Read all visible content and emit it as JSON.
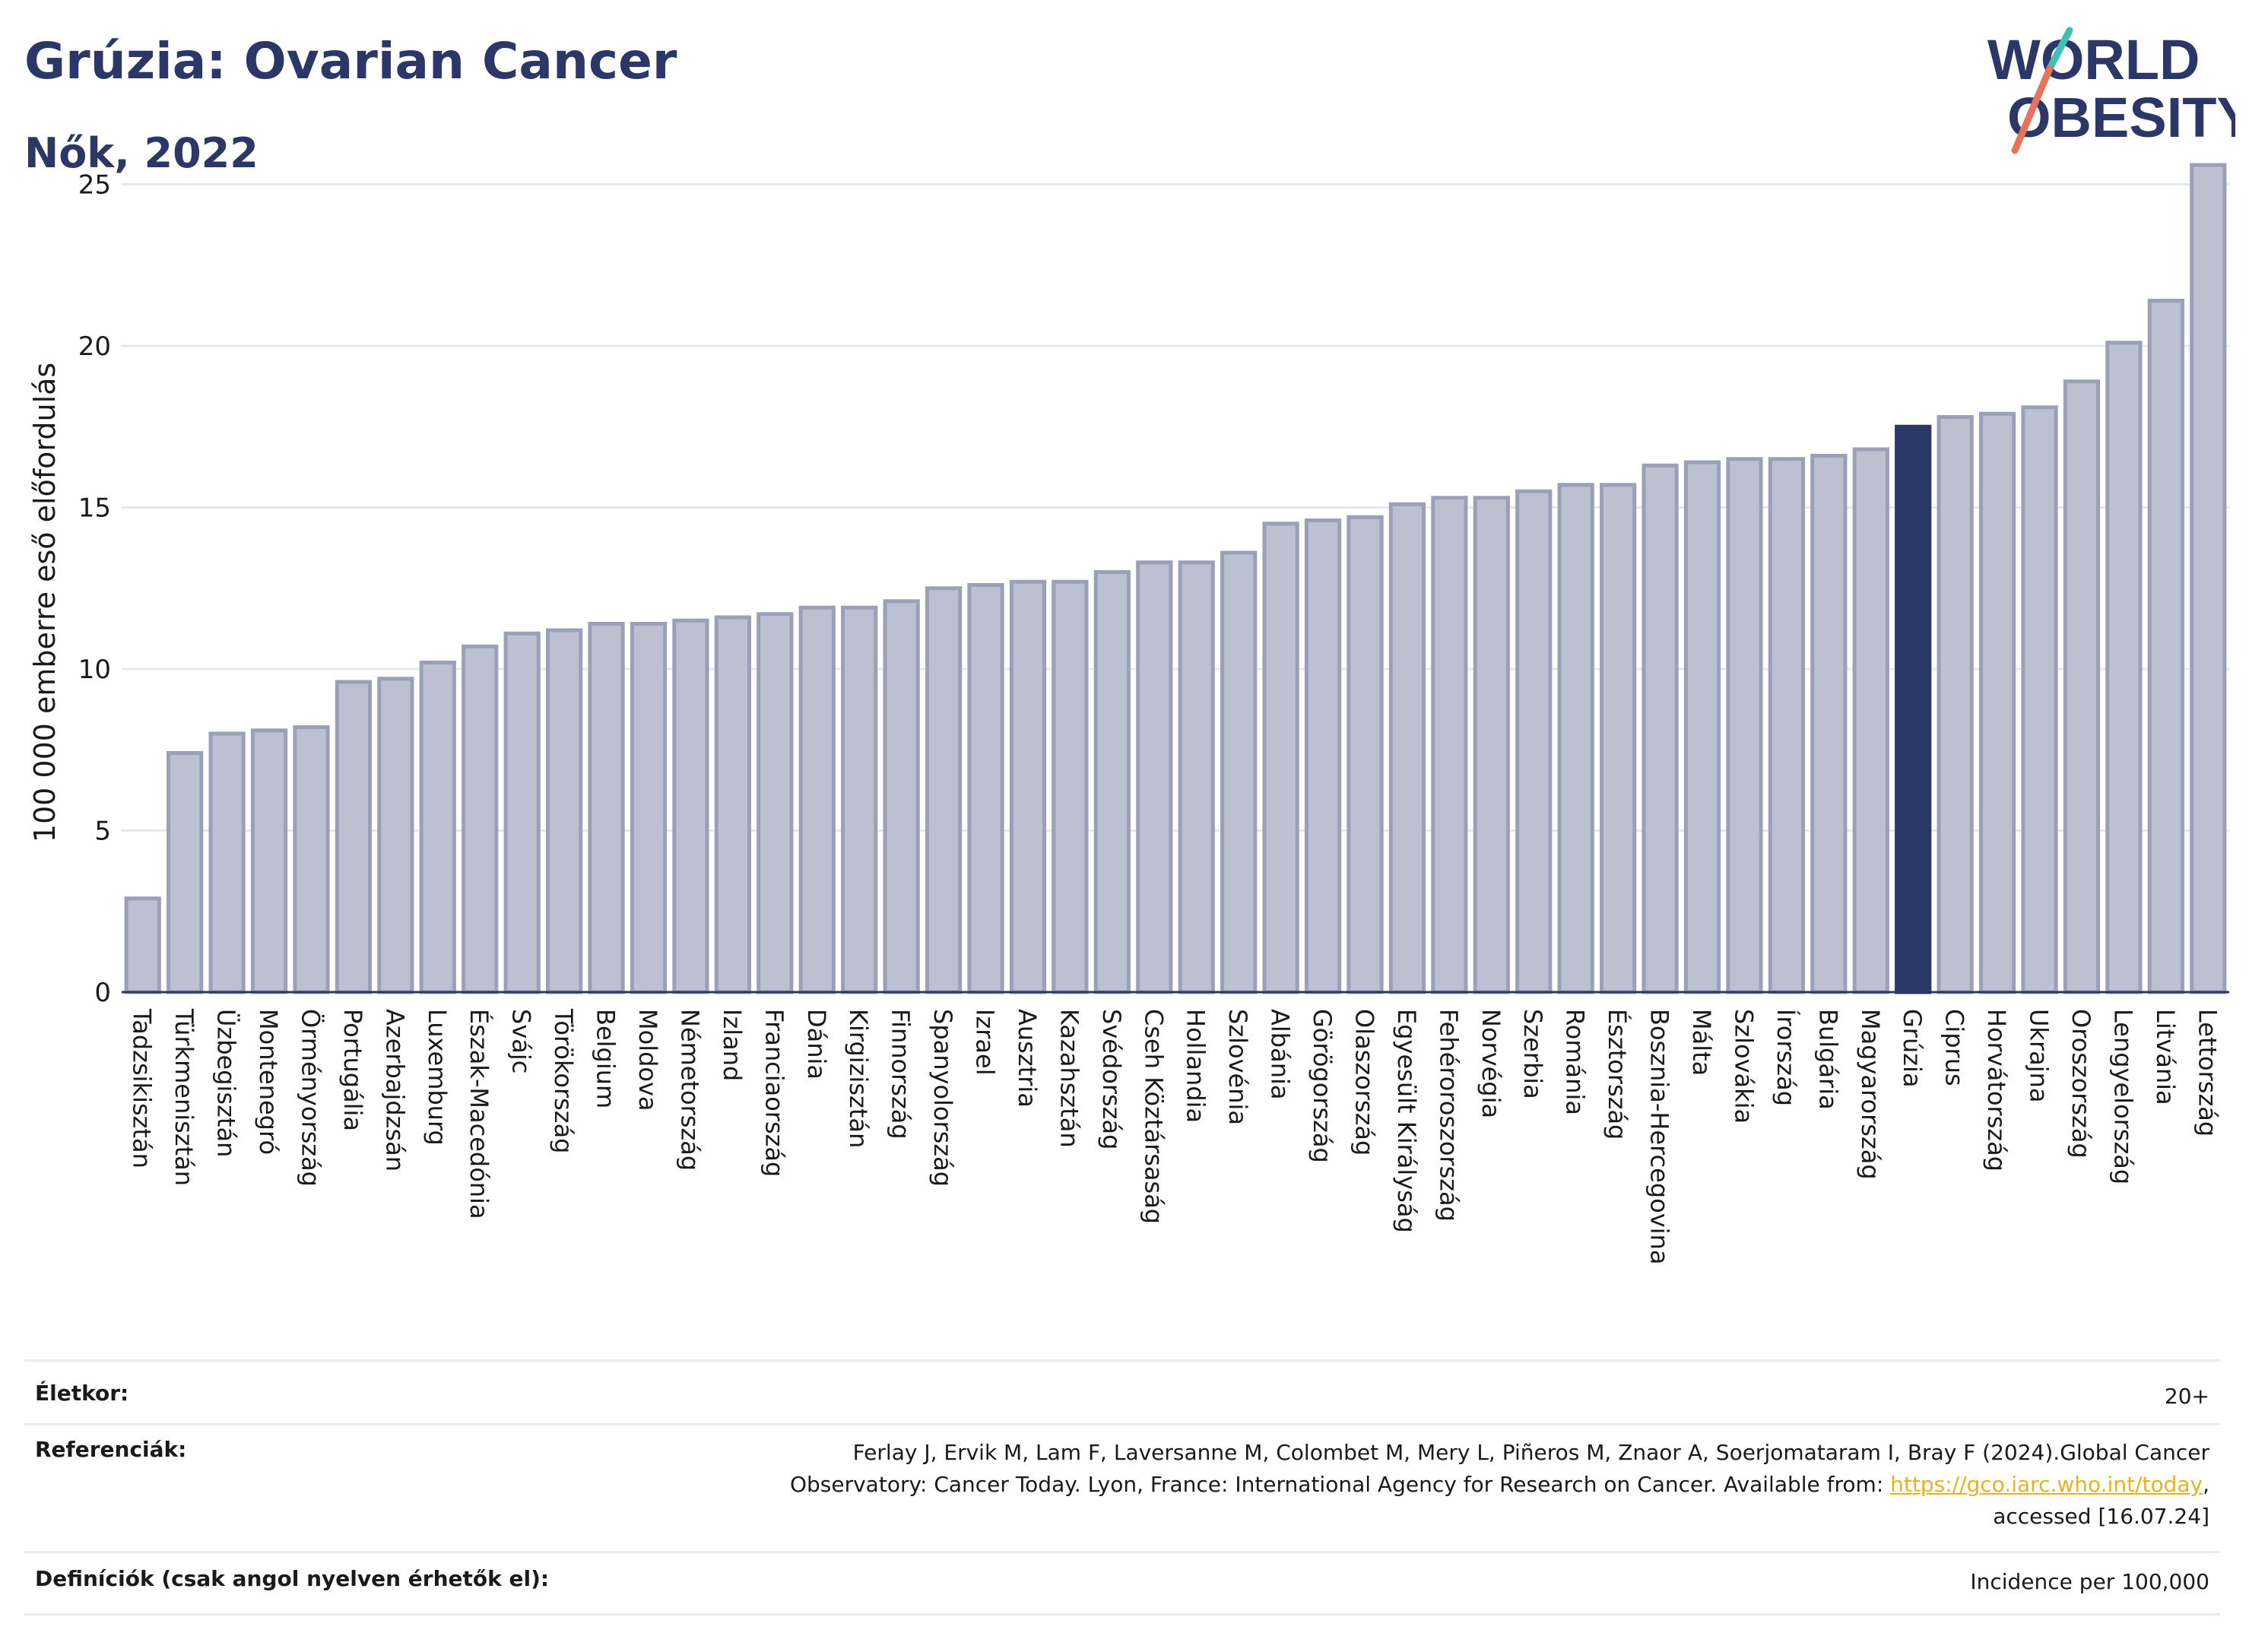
{
  "header": {
    "title": "Grúzia: Ovarian Cancer",
    "subtitle": "Nők, 2022"
  },
  "logo": {
    "line1": "WORLD",
    "line2": "OBESITY"
  },
  "colors": {
    "bar": "#bcc0d0",
    "bar_stroke": "#9aa0b8",
    "highlight": "#2b3766",
    "grid": "#e6e8ee",
    "logo_text": "#2b3766",
    "logo_slash_teal": "#3fbfb5",
    "logo_slash_coral": "#e8735a",
    "link": "#e8b41c"
  },
  "chart_data": {
    "type": "bar",
    "ylabel": "100 000 emberre eső előfordulás",
    "ylim": [
      0,
      26
    ],
    "yticks": [
      0,
      5,
      10,
      15,
      20,
      25
    ],
    "grid": true,
    "highlight": "Grúzia",
    "categories": [
      "Tadzsikisztán",
      "Türkmenisztán",
      "Üzbegisztán",
      "Montenegró",
      "Örményország",
      "Portugália",
      "Azerbajdzsán",
      "Luxemburg",
      "Észak-Macedónia",
      "Svájc",
      "Törökország",
      "Belgium",
      "Moldova",
      "Németország",
      "Izland",
      "Franciaország",
      "Dánia",
      "Kirgizisztán",
      "Finnország",
      "Spanyolország",
      "Izrael",
      "Ausztria",
      "Kazahsztán",
      "Svédország",
      "Cseh Köztársaság",
      "Hollandia",
      "Szlovénia",
      "Albánia",
      "Görögország",
      "Olaszország",
      "Egyesült Királyság",
      "Fehéroroszország",
      "Norvégia",
      "Szerbia",
      "Románia",
      "Észtország",
      "Bosznia-Hercegovina",
      "Málta",
      "Szlovákia",
      "Írország",
      "Bulgária",
      "Magyarország",
      "Grúzia",
      "Ciprus",
      "Horvátország",
      "Ukrajna",
      "Oroszország",
      "Lengyelország",
      "Litvánia",
      "Lettország"
    ],
    "values": [
      2.9,
      7.4,
      8.0,
      8.1,
      8.2,
      9.6,
      9.7,
      10.2,
      10.7,
      11.1,
      11.2,
      11.4,
      11.4,
      11.5,
      11.6,
      11.7,
      11.9,
      11.9,
      12.1,
      12.5,
      12.6,
      12.7,
      12.7,
      13.0,
      13.3,
      13.3,
      13.6,
      14.5,
      14.6,
      14.7,
      15.1,
      15.3,
      15.3,
      15.5,
      15.7,
      15.7,
      16.3,
      16.4,
      16.5,
      16.5,
      16.6,
      16.8,
      17.5,
      17.8,
      17.9,
      18.1,
      18.9,
      20.1,
      21.4,
      25.6
    ]
  },
  "info": {
    "age_label": "Életkor:",
    "age_value": "20+",
    "ref_label": "Referenciák:",
    "ref_line1": "Ferlay J, Ervik M, Lam F, Laversanne M, Colombet M, Mery L, Piñeros M, Znaor A, Soerjomataram I, Bray F (2024).Global Cancer",
    "ref_line2_pre": "Observatory: Cancer Today. Lyon, France: International Agency for Research on Cancer. Available from: ",
    "ref_link": "https://gco.iarc.who.int/today",
    "ref_line2_post": ",",
    "ref_line3": "accessed [16.07.24]",
    "def_label": "Definíciók (csak angol nyelven érhetők el):",
    "def_value": "Incidence per 100,000"
  }
}
